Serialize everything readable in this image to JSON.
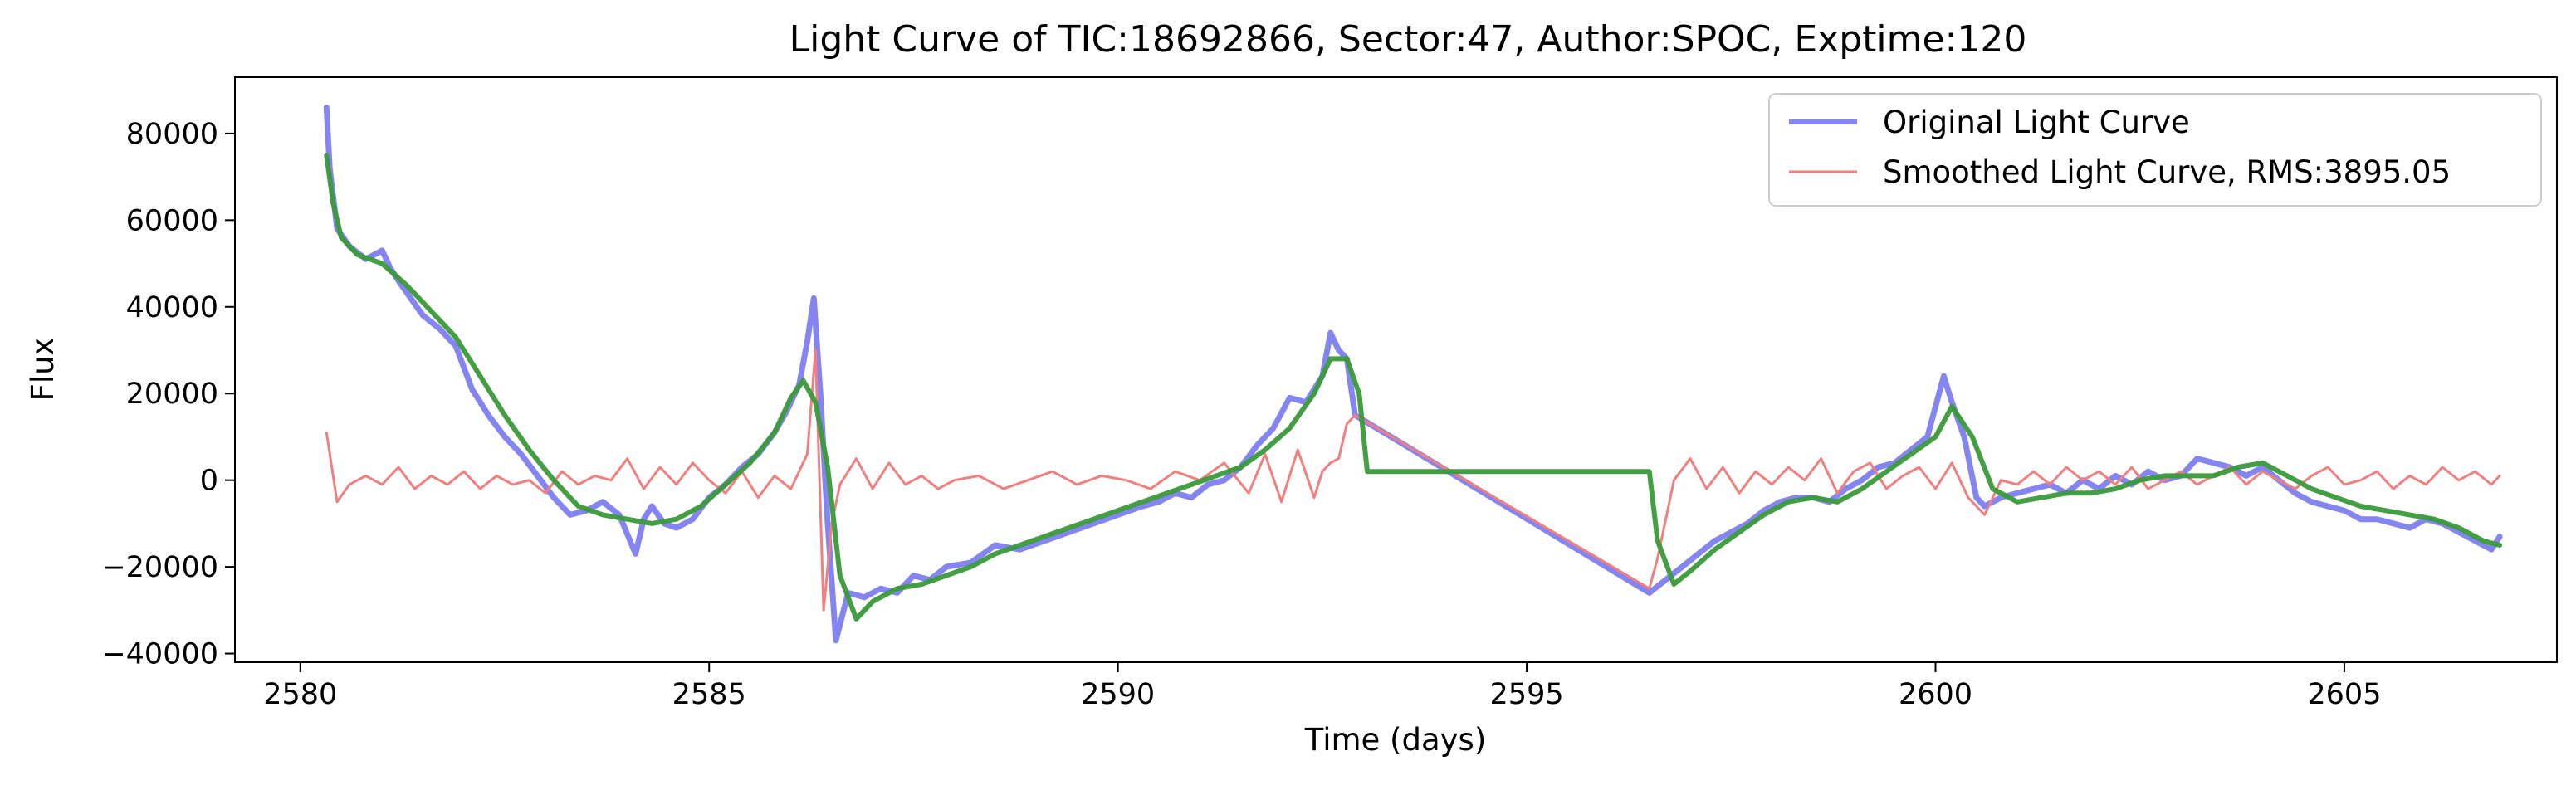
{
  "chart_data": {
    "type": "line",
    "title": "Light Curve of TIC:18692866, Sector:47, Author:SPOC, Exptime:120",
    "xlabel": "Time (days)",
    "ylabel": "Flux",
    "xlim": [
      2579.2,
      2607.6
    ],
    "ylim": [
      -42000,
      93000
    ],
    "xticks": [
      2580,
      2585,
      2590,
      2595,
      2600,
      2605
    ],
    "yticks": [
      -40000,
      -20000,
      0,
      20000,
      40000,
      60000,
      80000
    ],
    "grid": false,
    "legend_position": "upper right",
    "legend": [
      {
        "label": "Original Light Curve",
        "color": "#7070f0"
      },
      {
        "label": "Smoothed Light Curve, RMS:3895.05",
        "color": "#f08080"
      }
    ],
    "series": [
      {
        "name": "Original Light Curve",
        "color": "#7070f0",
        "x": [
          2580.32,
          2580.36,
          2580.45,
          2580.6,
          2580.8,
          2581.0,
          2581.1,
          2581.2,
          2581.35,
          2581.5,
          2581.7,
          2581.9,
          2582.0,
          2582.1,
          2582.3,
          2582.5,
          2582.7,
          2582.9,
          2583.1,
          2583.3,
          2583.5,
          2583.7,
          2583.9,
          2584.1,
          2584.2,
          2584.3,
          2584.45,
          2584.6,
          2584.8,
          2585.0,
          2585.2,
          2585.4,
          2585.6,
          2585.8,
          2585.95,
          2586.1,
          2586.2,
          2586.28,
          2586.36,
          2586.45,
          2586.55,
          2586.7,
          2586.9,
          2587.1,
          2587.3,
          2587.5,
          2587.7,
          2587.9,
          2588.2,
          2588.5,
          2588.8,
          2589.1,
          2589.4,
          2589.7,
          2590.0,
          2590.3,
          2590.5,
          2590.7,
          2590.9,
          2591.1,
          2591.3,
          2591.5,
          2591.7,
          2591.9,
          2592.1,
          2592.3,
          2592.5,
          2592.6,
          2592.7,
          2592.8,
          2592.9,
          2596.5,
          2596.7,
          2596.9,
          2597.1,
          2597.3,
          2597.5,
          2597.7,
          2597.9,
          2598.1,
          2598.3,
          2598.5,
          2598.7,
          2598.9,
          2599.1,
          2599.3,
          2599.5,
          2599.7,
          2599.9,
          2600.1,
          2600.2,
          2600.35,
          2600.5,
          2600.6,
          2600.8,
          2601.0,
          2601.2,
          2601.4,
          2601.6,
          2601.8,
          2602.0,
          2602.2,
          2602.4,
          2602.6,
          2602.8,
          2603.0,
          2603.2,
          2603.4,
          2603.6,
          2603.8,
          2604.0,
          2604.2,
          2604.4,
          2604.6,
          2604.8,
          2605.0,
          2605.2,
          2605.4,
          2605.6,
          2605.8,
          2606.0,
          2606.2,
          2606.4,
          2606.6,
          2606.8,
          2606.9
        ],
        "y": [
          86000,
          72000,
          58000,
          54000,
          51000,
          53000,
          49000,
          46000,
          42000,
          38000,
          35000,
          31000,
          26000,
          21000,
          15000,
          10000,
          6000,
          1000,
          -4000,
          -8000,
          -7000,
          -5000,
          -8000,
          -17000,
          -9000,
          -6000,
          -10000,
          -11000,
          -9000,
          -4000,
          -1000,
          3000,
          6000,
          11000,
          16000,
          22000,
          32000,
          42000,
          20000,
          -10000,
          -37000,
          -26000,
          -27000,
          -25000,
          -26000,
          -22000,
          -23000,
          -20000,
          -19000,
          -15000,
          -16000,
          -14000,
          -12000,
          -10000,
          -8000,
          -6000,
          -5000,
          -3000,
          -4000,
          -1000,
          0,
          3000,
          8000,
          12000,
          19000,
          18000,
          24000,
          34000,
          30000,
          28000,
          15000,
          -26000,
          -23000,
          -20000,
          -17000,
          -14000,
          -12000,
          -10000,
          -7000,
          -5000,
          -4000,
          -4000,
          -5000,
          -2000,
          0,
          3000,
          4000,
          7000,
          10000,
          24000,
          18000,
          10000,
          -4000,
          -6000,
          -4000,
          -3000,
          -2000,
          -1000,
          -3000,
          0,
          -2000,
          1000,
          -1000,
          2000,
          0,
          1000,
          5000,
          4000,
          3000,
          1000,
          3000,
          0,
          -3000,
          -5000,
          -6000,
          -7000,
          -9000,
          -9000,
          -10000,
          -11000,
          -9000,
          -10000,
          -12000,
          -14000,
          -16000,
          -13000
        ]
      },
      {
        "name": "Smoothed Light Curve, RMS:3895.05",
        "color": "#f08080",
        "x": [
          2580.32,
          2580.45,
          2580.6,
          2580.8,
          2581.0,
          2581.2,
          2581.4,
          2581.6,
          2581.8,
          2582.0,
          2582.2,
          2582.4,
          2582.6,
          2582.8,
          2583.0,
          2583.2,
          2583.4,
          2583.6,
          2583.8,
          2584.0,
          2584.2,
          2584.4,
          2584.6,
          2584.8,
          2585.0,
          2585.2,
          2585.4,
          2585.6,
          2585.8,
          2586.0,
          2586.2,
          2586.3,
          2586.4,
          2586.5,
          2586.6,
          2586.8,
          2587.0,
          2587.2,
          2587.4,
          2587.6,
          2587.8,
          2588.0,
          2588.3,
          2588.6,
          2588.9,
          2589.2,
          2589.5,
          2589.8,
          2590.1,
          2590.4,
          2590.7,
          2591.0,
          2591.3,
          2591.6,
          2591.8,
          2592.0,
          2592.2,
          2592.4,
          2592.5,
          2592.6,
          2592.7,
          2592.8,
          2592.9,
          2596.5,
          2596.6,
          2596.8,
          2597.0,
          2597.2,
          2597.4,
          2597.6,
          2597.8,
          2598.0,
          2598.2,
          2598.4,
          2598.6,
          2598.8,
          2599.0,
          2599.2,
          2599.4,
          2599.6,
          2599.8,
          2600.0,
          2600.2,
          2600.4,
          2600.6,
          2600.8,
          2601.0,
          2601.2,
          2601.4,
          2601.6,
          2601.8,
          2602.0,
          2602.2,
          2602.4,
          2602.6,
          2602.8,
          2603.0,
          2603.2,
          2603.4,
          2603.6,
          2603.8,
          2604.0,
          2604.2,
          2604.4,
          2604.6,
          2604.8,
          2605.0,
          2605.2,
          2605.4,
          2605.6,
          2605.8,
          2606.0,
          2606.2,
          2606.4,
          2606.6,
          2606.8,
          2606.9
        ],
        "y": [
          11000,
          -5000,
          -1000,
          1000,
          -1000,
          3000,
          -2000,
          1000,
          -1000,
          2000,
          -2000,
          1000,
          -1000,
          0,
          -3000,
          2000,
          -1000,
          1000,
          0,
          5000,
          -2000,
          3000,
          -1000,
          4000,
          0,
          -3000,
          2000,
          -4000,
          1000,
          -2000,
          6000,
          30000,
          -30000,
          -10000,
          -1000,
          5000,
          -2000,
          4000,
          -1000,
          1000,
          -2000,
          0,
          1000,
          -2000,
          0,
          2000,
          -1000,
          1000,
          0,
          -2000,
          2000,
          0,
          4000,
          -3000,
          6000,
          -5000,
          7000,
          -4000,
          2000,
          4000,
          5000,
          13000,
          15000,
          -25000,
          -18000,
          0,
          5000,
          -2000,
          3000,
          -3000,
          2000,
          -1000,
          3000,
          0,
          5000,
          -3000,
          2000,
          4000,
          -2000,
          1000,
          3000,
          -2000,
          4000,
          -4000,
          -8000,
          0,
          -1000,
          2000,
          -1000,
          3000,
          0,
          2000,
          -1000,
          3000,
          -2000,
          0,
          2000,
          -1000,
          1000,
          3000,
          -1000,
          2000,
          0,
          -2000,
          1000,
          3000,
          -1000,
          0,
          2000,
          -2000,
          1000,
          -1000,
          3000,
          0,
          2000,
          -1000,
          1000
        ]
      },
      {
        "name": "",
        "color": "#3a9a3a",
        "x": [
          2580.32,
          2580.4,
          2580.5,
          2580.7,
          2581.0,
          2581.3,
          2581.6,
          2581.9,
          2582.2,
          2582.5,
          2582.8,
          2583.1,
          2583.4,
          2583.7,
          2584.0,
          2584.3,
          2584.6,
          2584.9,
          2585.2,
          2585.5,
          2585.8,
          2586.0,
          2586.15,
          2586.3,
          2586.45,
          2586.6,
          2586.8,
          2587.0,
          2587.3,
          2587.6,
          2587.9,
          2588.2,
          2588.5,
          2588.8,
          2589.1,
          2589.4,
          2589.7,
          2590.0,
          2590.3,
          2590.6,
          2590.9,
          2591.2,
          2591.5,
          2591.8,
          2592.1,
          2592.4,
          2592.6,
          2592.8,
          2592.95,
          2593.05,
          2596.5,
          2596.6,
          2596.8,
          2597.0,
          2597.3,
          2597.6,
          2597.9,
          2598.2,
          2598.5,
          2598.8,
          2599.1,
          2599.4,
          2599.7,
          2600.0,
          2600.2,
          2600.45,
          2600.7,
          2601.0,
          2601.3,
          2601.6,
          2601.9,
          2602.2,
          2602.5,
          2602.8,
          2603.1,
          2603.4,
          2603.7,
          2604.0,
          2604.3,
          2604.6,
          2604.9,
          2605.2,
          2605.5,
          2605.8,
          2606.1,
          2606.4,
          2606.7,
          2606.9
        ],
        "y": [
          75000,
          64000,
          56000,
          52000,
          50000,
          45000,
          39000,
          33000,
          24000,
          15000,
          7000,
          0,
          -6000,
          -8000,
          -9000,
          -10000,
          -9000,
          -6000,
          -1000,
          4000,
          11000,
          19000,
          23000,
          18000,
          3000,
          -22000,
          -32000,
          -28000,
          -25000,
          -24000,
          -22000,
          -20000,
          -17000,
          -15000,
          -13000,
          -11000,
          -9000,
          -7000,
          -5000,
          -3000,
          -1000,
          1000,
          3000,
          7000,
          12000,
          20000,
          28000,
          28000,
          20000,
          2000,
          2000,
          -14000,
          -24000,
          -21000,
          -16000,
          -12000,
          -8000,
          -5000,
          -4000,
          -5000,
          -2000,
          2000,
          6000,
          10000,
          17000,
          10000,
          -2000,
          -5000,
          -4000,
          -3000,
          -3000,
          -2000,
          0,
          1000,
          1000,
          1000,
          3000,
          4000,
          1000,
          -2000,
          -4000,
          -6000,
          -7000,
          -8000,
          -9000,
          -11000,
          -14000,
          -15000
        ]
      }
    ]
  }
}
